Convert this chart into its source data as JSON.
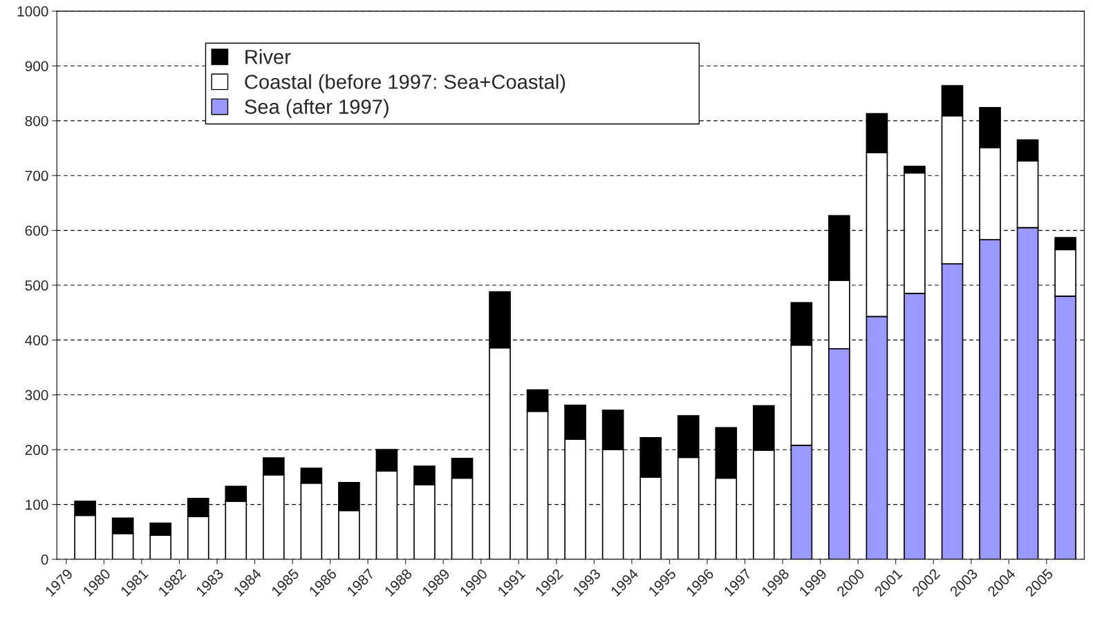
{
  "chart_data": {
    "type": "bar",
    "stacked": true,
    "categories": [
      "1979",
      "1980",
      "1981",
      "1982",
      "1983",
      "1984",
      "1985",
      "1986",
      "1987",
      "1988",
      "1989",
      "1990",
      "1991",
      "1992",
      "1993",
      "1994",
      "1995",
      "1996",
      "1997",
      "1998",
      "1999",
      "2000",
      "2001",
      "2002",
      "2003",
      "2004",
      "2005"
    ],
    "series": [
      {
        "name": "Sea (after 1997)",
        "color": "#9999ff",
        "values": [
          null,
          null,
          null,
          null,
          null,
          null,
          null,
          null,
          null,
          null,
          null,
          null,
          null,
          null,
          null,
          null,
          null,
          null,
          null,
          208,
          384,
          443,
          485,
          539,
          583,
          605,
          480
        ]
      },
      {
        "name": "Coastal (before 1997: Sea+Coastal)",
        "color": "#ffffff",
        "values": [
          80,
          47,
          44,
          78,
          106,
          154,
          139,
          89,
          161,
          136,
          148,
          386,
          270,
          219,
          200,
          150,
          186,
          148,
          199,
          183,
          125,
          299,
          220,
          270,
          168,
          122,
          85
        ]
      },
      {
        "name": "River",
        "color": "#000000",
        "values": [
          26,
          28,
          22,
          33,
          27,
          31,
          27,
          51,
          39,
          34,
          36,
          102,
          39,
          62,
          72,
          72,
          76,
          92,
          81,
          77,
          118,
          71,
          12,
          55,
          73,
          38,
          22
        ]
      }
    ],
    "ylim": [
      0,
      1000
    ],
    "yticks": [
      0,
      100,
      200,
      300,
      400,
      500,
      600,
      700,
      800,
      900,
      1000
    ],
    "grid": "y",
    "legend": "top left"
  }
}
